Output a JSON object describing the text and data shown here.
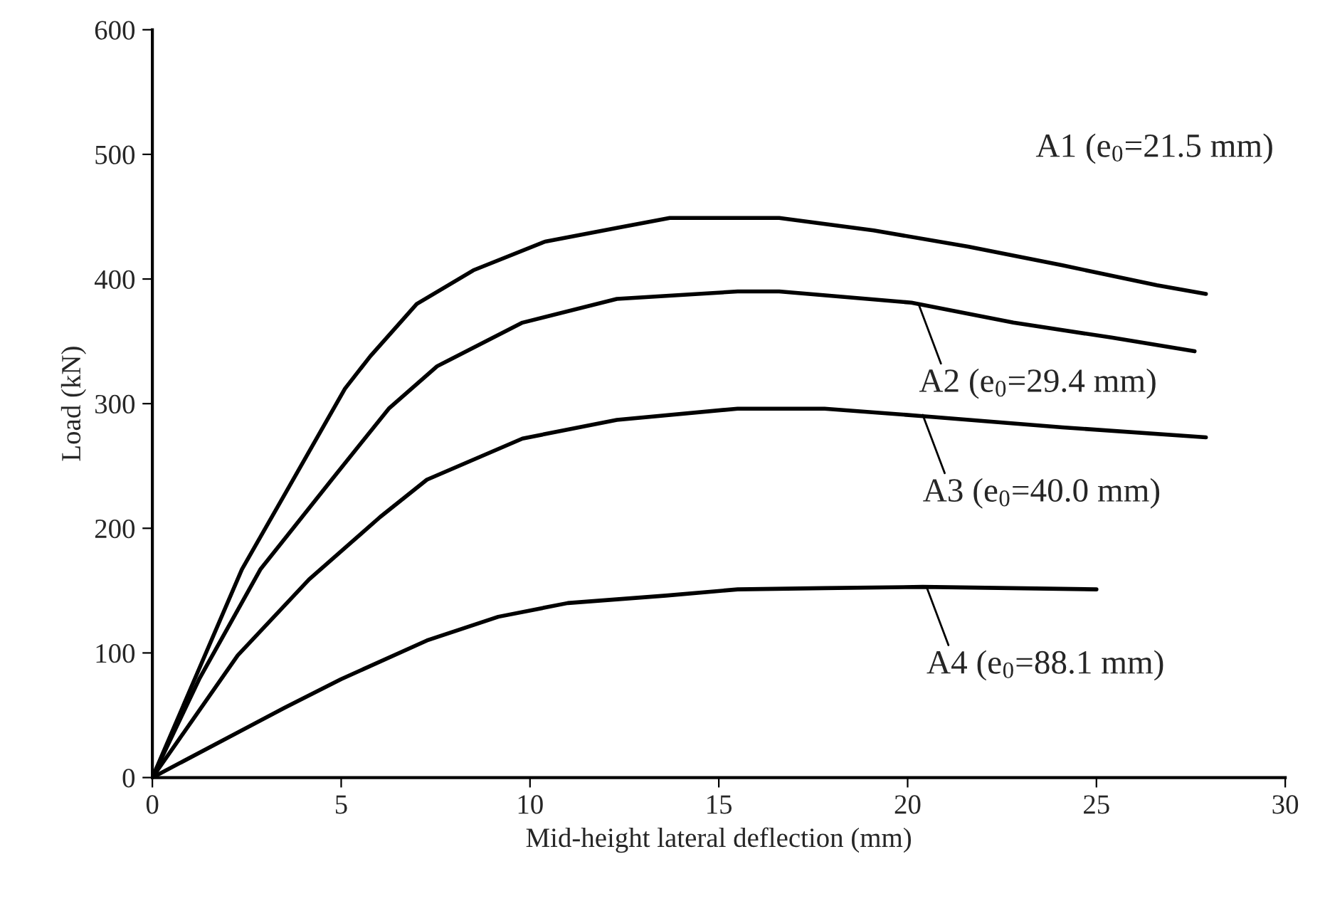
{
  "chart_data": {
    "type": "line",
    "xlabel": "Mid-height lateral deflection (mm)",
    "ylabel": "Load (kN)",
    "xlim": [
      0,
      30
    ],
    "xticks": [
      0,
      5,
      10,
      15,
      20,
      25,
      30
    ],
    "ylim": [
      0,
      600
    ],
    "yticks": [
      0,
      100,
      200,
      300,
      400,
      500,
      600
    ],
    "marker": "none",
    "line_style": "solid",
    "series": [
      {
        "color": "#000000",
        "x": [
          0,
          2.37,
          3.5,
          5.1,
          5.77,
          7.0,
          8.5,
          10.4,
          12.3,
          13.7,
          14.1,
          15.5,
          16.6,
          19.1,
          21.6,
          24.1,
          26.6,
          27.9
        ],
        "values": [
          0,
          167,
          227,
          312,
          338,
          380,
          407,
          430,
          441,
          449,
          449,
          449,
          449,
          439,
          426,
          411,
          395,
          388
        ]
      },
      {
        "color": "#000000",
        "x": [
          0,
          1.24,
          2.86,
          4.75,
          6.26,
          7.54,
          9.8,
          12.3,
          15.5,
          16.6,
          20.1,
          22.8,
          25.4,
          27.6
        ],
        "values": [
          0,
          79,
          167,
          239,
          296,
          330,
          365,
          384,
          390,
          390,
          381,
          365,
          353,
          342
        ]
      },
      {
        "color": "#000000",
        "x": [
          0,
          2.26,
          4.15,
          6.03,
          7.27,
          9.8,
          12.3,
          15.5,
          17.8,
          20.4,
          24.1,
          27.9
        ],
        "values": [
          0,
          98,
          159,
          209,
          239,
          272,
          287,
          296,
          296,
          290,
          281,
          273
        ]
      },
      {
        "color": "#000000",
        "x": [
          0,
          3.5,
          5.0,
          7.27,
          9.16,
          11.0,
          13.6,
          15.5,
          17.8,
          20.4,
          25.0
        ],
        "values": [
          0,
          56,
          79,
          110,
          129,
          140,
          146,
          151,
          152,
          153,
          151
        ]
      }
    ],
    "annotations": [
      "A1 (e$_{0}$=21.5 mm)",
      {
        "text": "A2 (e$_{0}$=29.4 mm)",
        "x": 20.3,
        "y": 379
      },
      {
        "text": "A3 (e$_{0}$=40.0 mm)",
        "x": 20.4,
        "y": 291
      },
      {
        "text": "A4 (e$_{0}$=88.1 mm)",
        "x": 20.5,
        "y": 153
      }
    ]
  }
}
